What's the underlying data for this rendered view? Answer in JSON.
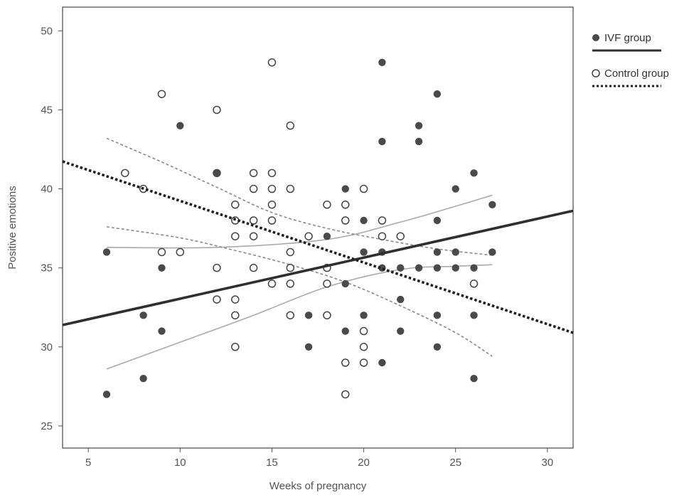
{
  "chart_data": {
    "type": "scatter",
    "xlabel": "Weeks of pregnancy",
    "ylabel": "Positive emotions",
    "xlim": [
      3.6,
      31.4
    ],
    "ylim": [
      23.6,
      51.5
    ],
    "xticks": [
      5,
      10,
      15,
      20,
      25,
      30
    ],
    "yticks": [
      25,
      30,
      35,
      40,
      45,
      50
    ],
    "legend": [
      "IVF group",
      "Control group"
    ],
    "series": [
      {
        "name": "IVF group",
        "marker": "filled-circle",
        "color": "#4a4a4a",
        "points": [
          [
            6,
            36
          ],
          [
            6,
            27
          ],
          [
            8,
            32
          ],
          [
            8,
            28
          ],
          [
            9,
            35
          ],
          [
            9,
            31
          ],
          [
            10,
            44
          ],
          [
            12,
            41
          ],
          [
            17,
            32
          ],
          [
            17,
            30
          ],
          [
            18,
            37
          ],
          [
            19,
            40
          ],
          [
            19,
            34
          ],
          [
            19,
            31
          ],
          [
            20,
            38
          ],
          [
            20,
            36
          ],
          [
            20,
            32
          ],
          [
            21,
            48
          ],
          [
            21,
            43
          ],
          [
            21,
            36
          ],
          [
            21,
            35
          ],
          [
            21,
            29
          ],
          [
            22,
            35
          ],
          [
            22,
            33
          ],
          [
            22,
            31
          ],
          [
            23,
            44
          ],
          [
            23,
            43
          ],
          [
            23,
            35
          ],
          [
            24,
            46
          ],
          [
            24,
            38
          ],
          [
            24,
            36
          ],
          [
            24,
            35
          ],
          [
            24,
            32
          ],
          [
            24,
            30
          ],
          [
            25,
            40
          ],
          [
            25,
            36
          ],
          [
            25,
            35
          ],
          [
            26,
            41
          ],
          [
            26,
            35
          ],
          [
            26,
            32
          ],
          [
            26,
            28
          ],
          [
            27,
            39
          ],
          [
            27,
            36
          ]
        ],
        "fit": {
          "intercept": 30.45,
          "slope": 0.26,
          "x_range": [
            3.6,
            31.4
          ]
        },
        "ci_upper": [
          [
            6,
            36.3
          ],
          [
            12,
            36.3
          ],
          [
            18,
            36.8
          ],
          [
            22,
            37.9
          ],
          [
            25,
            38.9
          ],
          [
            27,
            39.6
          ]
        ],
        "ci_lower": [
          [
            6,
            28.6
          ],
          [
            10,
            30.3
          ],
          [
            14,
            32.0
          ],
          [
            18,
            33.8
          ],
          [
            22,
            34.9
          ],
          [
            25,
            35.1
          ],
          [
            27,
            35.2
          ]
        ]
      },
      {
        "name": "Control group",
        "marker": "open-circle",
        "color": "#444444",
        "points": [
          [
            7,
            41
          ],
          [
            8,
            40
          ],
          [
            9,
            46
          ],
          [
            9,
            36
          ],
          [
            10,
            36
          ],
          [
            12,
            45
          ],
          [
            12,
            41
          ],
          [
            12,
            35
          ],
          [
            12,
            33
          ],
          [
            13,
            39
          ],
          [
            13,
            38
          ],
          [
            13,
            37
          ],
          [
            13,
            33
          ],
          [
            13,
            32
          ],
          [
            13,
            30
          ],
          [
            14,
            41
          ],
          [
            14,
            40
          ],
          [
            14,
            38
          ],
          [
            14,
            37
          ],
          [
            14,
            35
          ],
          [
            15,
            48
          ],
          [
            15,
            41
          ],
          [
            15,
            40
          ],
          [
            15,
            39
          ],
          [
            15,
            38
          ],
          [
            15,
            34
          ],
          [
            16,
            44
          ],
          [
            16,
            40
          ],
          [
            16,
            36
          ],
          [
            16,
            35
          ],
          [
            16,
            34
          ],
          [
            16,
            32
          ],
          [
            17,
            37
          ],
          [
            18,
            39
          ],
          [
            18,
            35
          ],
          [
            18,
            34
          ],
          [
            18,
            32
          ],
          [
            19,
            39
          ],
          [
            19,
            38
          ],
          [
            19,
            29
          ],
          [
            19,
            27
          ],
          [
            20,
            40
          ],
          [
            20,
            31
          ],
          [
            20,
            30
          ],
          [
            20,
            29
          ],
          [
            21,
            38
          ],
          [
            21,
            37
          ],
          [
            22,
            37
          ],
          [
            26,
            34
          ]
        ],
        "fit": {
          "intercept": 43.14,
          "slope": -0.39,
          "x_range": [
            3.6,
            31.4
          ]
        },
        "ci_upper": [
          [
            6,
            43.2
          ],
          [
            9,
            41.7
          ],
          [
            12,
            40.1
          ],
          [
            15,
            38.5
          ],
          [
            18,
            37.5
          ],
          [
            21,
            36.8
          ],
          [
            24,
            36.2
          ],
          [
            27,
            35.8
          ]
        ],
        "ci_lower": [
          [
            6,
            37.6
          ],
          [
            10,
            36.9
          ],
          [
            13,
            36.1
          ],
          [
            16,
            35.2
          ],
          [
            19,
            34.1
          ],
          [
            22,
            32.6
          ],
          [
            25,
            30.9
          ],
          [
            27,
            29.4
          ]
        ]
      }
    ]
  }
}
